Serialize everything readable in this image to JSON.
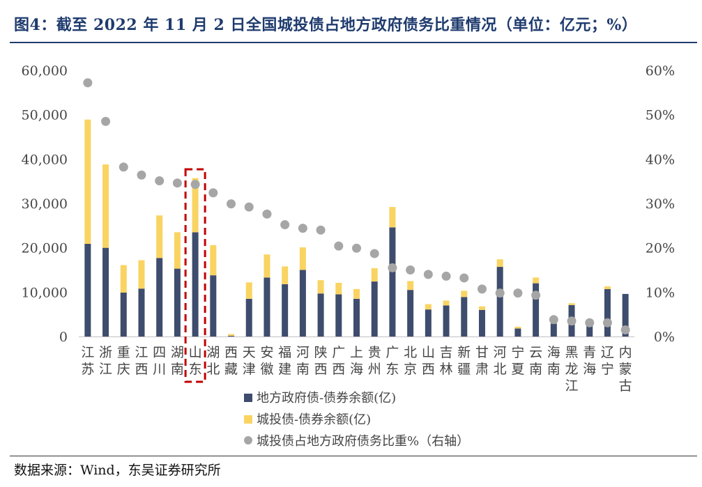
{
  "title": "图4：截至 2022 年 11 月 2 日全国城投债占地方政府债务比重情况（单位：亿元；%）",
  "source": "数据来源：Wind，东吴证券研究所",
  "colors": {
    "local_gov": "#3e4c6d",
    "chengtou": "#f9d462",
    "ratio": "#a6a6a6",
    "title": "#1f3b6e",
    "highlight": "#c00000"
  },
  "chart_data": {
    "type": "bar",
    "stacked": true,
    "y_left": {
      "ylim": [
        0,
        60000
      ],
      "ticks": [
        0,
        10000,
        20000,
        30000,
        40000,
        50000,
        60000
      ],
      "tick_labels": [
        "0",
        "10,000",
        "20,000",
        "30,000",
        "40,000",
        "50,000",
        "60,000"
      ]
    },
    "y_right": {
      "ylim": [
        0,
        60
      ],
      "ticks": [
        0,
        10,
        20,
        30,
        40,
        50,
        60
      ],
      "tick_labels": [
        "0%",
        "10%",
        "20%",
        "30%",
        "40%",
        "50%",
        "60%"
      ]
    },
    "categories": [
      "江苏",
      "浙江",
      "重庆",
      "江西",
      "四川",
      "湖南",
      "山东",
      "湖北",
      "西藏",
      "天津",
      "安徽",
      "福建",
      "河南",
      "陕西",
      "广西",
      "上海",
      "贵州",
      "广东",
      "北京",
      "山西",
      "吉林",
      "新疆",
      "甘肃",
      "河北",
      "宁夏",
      "云南",
      "海南",
      "黑龙江",
      "青海",
      "辽宁",
      "内蒙古"
    ],
    "series": [
      {
        "name": "地方政府债-债券余额(亿)",
        "kind": "bar",
        "values": [
          20900,
          20000,
          9900,
          10800,
          17700,
          15300,
          23500,
          13800,
          150,
          8500,
          13300,
          11800,
          15000,
          9700,
          9500,
          8500,
          12400,
          24600,
          10500,
          6100,
          7000,
          8900,
          6000,
          15700,
          1800,
          12000,
          2900,
          7100,
          2700,
          10700,
          9600
        ]
      },
      {
        "name": "城投债-债券余额(亿)",
        "kind": "bar",
        "values": [
          28000,
          18800,
          6200,
          6400,
          9600,
          8200,
          12200,
          6800,
          400,
          3700,
          5200,
          4000,
          5100,
          3000,
          2600,
          2200,
          3000,
          4600,
          2000,
          1200,
          1100,
          1400,
          800,
          1700,
          400,
          1300,
          300,
          400,
          100,
          600,
          0
        ]
      },
      {
        "name": "城投债占地方政府债务比重%（右轴）",
        "kind": "scatter",
        "values": [
          57.2,
          48.5,
          38.2,
          36.4,
          35.1,
          34.6,
          34.3,
          32.4,
          29.9,
          29.2,
          27.6,
          25.2,
          24.4,
          24.0,
          20.4,
          19.9,
          18.7,
          15.5,
          15.0,
          14.0,
          13.6,
          13.2,
          10.7,
          9.8,
          9.8,
          9.3,
          3.8,
          3.5,
          3.1,
          3.1,
          1.5
        ]
      }
    ],
    "highlight_category": "山东",
    "legend_position": "bottom-center"
  }
}
